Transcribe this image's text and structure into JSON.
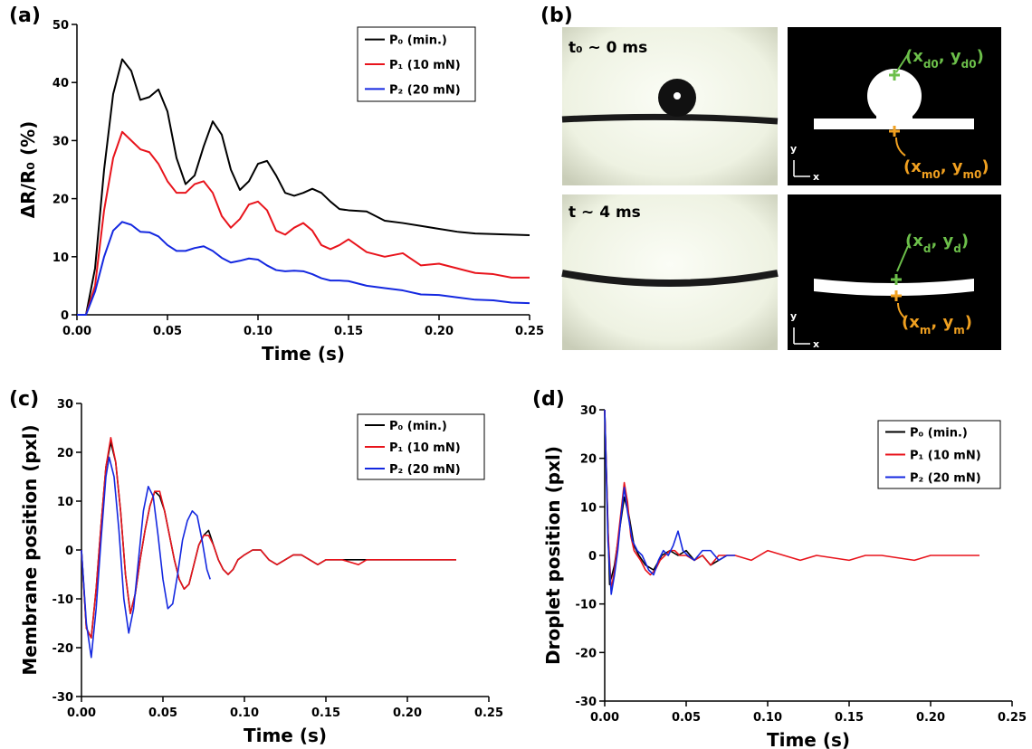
{
  "chart_data": [
    {
      "type": "line",
      "panel_label": "(a)",
      "xlabel": "Time (s)",
      "ylabel": "ΔR/R₀ (%)",
      "x": [
        0,
        0.005,
        0.01,
        0.015,
        0.02,
        0.025,
        0.03,
        0.035,
        0.04,
        0.045,
        0.05,
        0.055,
        0.06,
        0.065,
        0.07,
        0.075,
        0.08,
        0.085,
        0.09,
        0.095,
        0.1,
        0.105,
        0.11,
        0.115,
        0.12,
        0.125,
        0.13,
        0.135,
        0.14,
        0.145,
        0.15,
        0.16,
        0.17,
        0.18,
        0.19,
        0.2,
        0.21,
        0.22,
        0.23,
        0.24,
        0.25
      ],
      "series": [
        {
          "name": "P₀ (min.)",
          "color": "#000000",
          "values": [
            0,
            0,
            8,
            25,
            38,
            44,
            42,
            37,
            37.5,
            38.8,
            35,
            27,
            22.5,
            24,
            29,
            33.3,
            31,
            25,
            21.5,
            23,
            26,
            26.5,
            24,
            21,
            20.5,
            21,
            21.7,
            21,
            19.5,
            18.2,
            18,
            17.8,
            16.2,
            15.8,
            15.3,
            14.8,
            14.3,
            14,
            13.9,
            13.8,
            13.7
          ]
        },
        {
          "name": "P₁ (10 mN)",
          "color": "#e8141c",
          "values": [
            0,
            0,
            5,
            18,
            27,
            31.5,
            30,
            28.5,
            28,
            26,
            23,
            21,
            21,
            22.5,
            23,
            21,
            17,
            15,
            16.5,
            19,
            19.5,
            18,
            14.5,
            13.8,
            15,
            15.8,
            14.5,
            12,
            11.3,
            12,
            13,
            10.8,
            10,
            10.6,
            8.5,
            8.8,
            8,
            7.2,
            7,
            6.4,
            6.4
          ]
        },
        {
          "name": "P₂ (20 mN)",
          "color": "#1428e0",
          "values": [
            0,
            0,
            4,
            10,
            14.5,
            16,
            15.5,
            14.3,
            14.2,
            13.5,
            12,
            11,
            11,
            11.5,
            11.8,
            11,
            9.8,
            9,
            9.3,
            9.7,
            9.5,
            8.5,
            7.7,
            7.5,
            7.6,
            7.5,
            7,
            6.3,
            5.9,
            5.9,
            5.8,
            5,
            4.6,
            4.2,
            3.5,
            3.4,
            3,
            2.6,
            2.5,
            2.1,
            2
          ]
        }
      ],
      "xlim": [
        0,
        0.25
      ],
      "xticks": [
        {
          "value": 0,
          "label": "0.00"
        },
        {
          "value": 0.05,
          "label": "0.05"
        },
        {
          "value": 0.1,
          "label": "0.10"
        },
        {
          "value": 0.15,
          "label": "0.15"
        },
        {
          "value": 0.2,
          "label": "0.20"
        },
        {
          "value": 0.25,
          "label": "0.25"
        }
      ],
      "ylim": [
        0,
        50
      ],
      "yticks": [
        0,
        10,
        20,
        30,
        40,
        50
      ],
      "legend": "upper right"
    },
    {
      "type": "line",
      "panel_label": "(c)",
      "xlabel": "Time (s)",
      "ylabel": "Membrane position (pxl)",
      "series": [
        {
          "name": "P₀ (min.)",
          "color": "#000000",
          "x": [
            0,
            0.003,
            0.006,
            0.009,
            0.012,
            0.015,
            0.018,
            0.021,
            0.024,
            0.027,
            0.03,
            0.033,
            0.036,
            0.039,
            0.042,
            0.045,
            0.048,
            0.051,
            0.054,
            0.057,
            0.06,
            0.063,
            0.066,
            0.069,
            0.072,
            0.075,
            0.078,
            0.081,
            0.084,
            0.087,
            0.09,
            0.093,
            0.096,
            0.1,
            0.105,
            0.11,
            0.115,
            0.12,
            0.125,
            0.13,
            0.135,
            0.14,
            0.145,
            0.15,
            0.16,
            0.17,
            0.175,
            0.2,
            0.23
          ],
          "values": [
            0,
            -16,
            -18,
            -8,
            5,
            17,
            22,
            18,
            8,
            -5,
            -13,
            -9,
            -2,
            4,
            9,
            12,
            11,
            8,
            3,
            -2,
            -6,
            -8,
            -7,
            -3,
            1,
            3,
            4,
            1,
            -2,
            -4,
            -5,
            -4,
            -2,
            -1,
            0,
            0,
            -2,
            -3,
            -2,
            -1,
            -1,
            -2,
            -3,
            -2,
            -2,
            -2,
            -2,
            -2,
            -2
          ]
        },
        {
          "name": "P₁ (10 mN)",
          "color": "#e8141c",
          "x": [
            0,
            0.003,
            0.006,
            0.009,
            0.012,
            0.015,
            0.018,
            0.021,
            0.024,
            0.027,
            0.03,
            0.033,
            0.036,
            0.039,
            0.042,
            0.045,
            0.048,
            0.051,
            0.054,
            0.057,
            0.06,
            0.063,
            0.066,
            0.069,
            0.072,
            0.075,
            0.078,
            0.081,
            0.084,
            0.087,
            0.09,
            0.093,
            0.096,
            0.1,
            0.105,
            0.11,
            0.115,
            0.12,
            0.125,
            0.13,
            0.135,
            0.14,
            0.145,
            0.15,
            0.16,
            0.17,
            0.175,
            0.2,
            0.23
          ],
          "values": [
            0,
            -16,
            -18,
            -8,
            5,
            17,
            23,
            18,
            8,
            -5,
            -13,
            -9,
            -2,
            4,
            9,
            12,
            12,
            8,
            3,
            -2,
            -6,
            -8,
            -7,
            -3,
            1,
            3,
            3,
            1,
            -2,
            -4,
            -5,
            -4,
            -2,
            -1,
            0,
            0,
            -2,
            -3,
            -2,
            -1,
            -1,
            -2,
            -3,
            -2,
            -2,
            -3,
            -2,
            -2,
            -2
          ]
        },
        {
          "name": "P₂ (20 mN)",
          "color": "#1428e0",
          "x": [
            0,
            0.003,
            0.006,
            0.009,
            0.012,
            0.015,
            0.017,
            0.02,
            0.023,
            0.026,
            0.029,
            0.032,
            0.035,
            0.038,
            0.041,
            0.044,
            0.047,
            0.05,
            0.053,
            0.056,
            0.059,
            0.062,
            0.065,
            0.068,
            0.071,
            0.074,
            0.077,
            0.079
          ],
          "values": [
            0,
            -15,
            -22,
            -12,
            2,
            15,
            19,
            15,
            4,
            -10,
            -17,
            -12,
            -2,
            8,
            13,
            11,
            3,
            -6,
            -12,
            -11,
            -5,
            2,
            6,
            8,
            7,
            2,
            -4,
            -6
          ]
        }
      ],
      "xlim": [
        0,
        0.25
      ],
      "xticks": [
        {
          "value": 0,
          "label": "0.00"
        },
        {
          "value": 0.05,
          "label": "0.05"
        },
        {
          "value": 0.1,
          "label": "0.10"
        },
        {
          "value": 0.15,
          "label": "0.15"
        },
        {
          "value": 0.2,
          "label": "0.20"
        },
        {
          "value": 0.25,
          "label": "0.25"
        }
      ],
      "ylim": [
        -30,
        30
      ],
      "yticks": [
        -30,
        -20,
        -10,
        0,
        10,
        20,
        30
      ],
      "legend": "upper right"
    },
    {
      "type": "line",
      "panel_label": "(d)",
      "xlabel": "Time (s)",
      "ylabel": "Droplet position (pxl)",
      "series": [
        {
          "name": "P₀ (min.)",
          "color": "#000000",
          "x": [
            0,
            0.003,
            0.006,
            0.009,
            0.012,
            0.015,
            0.018,
            0.021,
            0.025,
            0.03,
            0.035,
            0.04,
            0.045,
            0.05,
            0.055,
            0.06,
            0.065,
            0.07,
            0.075
          ],
          "values": [
            30,
            -6,
            -2,
            5,
            12,
            8,
            2,
            0,
            -2,
            -3,
            0,
            1,
            0,
            1,
            -1,
            0,
            -2,
            -1,
            0
          ]
        },
        {
          "name": "P₁ (10 mN)",
          "color": "#e8141c",
          "x": [
            0,
            0.002,
            0.004,
            0.006,
            0.008,
            0.01,
            0.012,
            0.014,
            0.016,
            0.018,
            0.02,
            0.022,
            0.025,
            0.028,
            0.031,
            0.034,
            0.037,
            0.04,
            0.043,
            0.046,
            0.05,
            0.055,
            0.06,
            0.065,
            0.07,
            0.08,
            0.09,
            0.1,
            0.11,
            0.12,
            0.13,
            0.15,
            0.16,
            0.17,
            0.19,
            0.2,
            0.23
          ],
          "values": [
            30,
            5,
            -7,
            -3,
            3,
            9,
            15,
            11,
            4,
            1,
            0,
            -1,
            -3,
            -4,
            -3,
            -1,
            0,
            1,
            1,
            0,
            0,
            -1,
            0,
            -2,
            0,
            0,
            -1,
            1,
            0,
            -1,
            0,
            -1,
            0,
            0,
            -1,
            0,
            0
          ]
        },
        {
          "name": "P₂ (20 mN)",
          "color": "#1428e0",
          "x": [
            0,
            0.002,
            0.004,
            0.006,
            0.008,
            0.01,
            0.012,
            0.014,
            0.017,
            0.02,
            0.023,
            0.027,
            0.03,
            0.033,
            0.036,
            0.039,
            0.042,
            0.045,
            0.048,
            0.051,
            0.055,
            0.06,
            0.065,
            0.07,
            0.075,
            0.08
          ],
          "values": [
            30,
            3,
            -8,
            -4,
            1,
            8,
            14,
            9,
            3,
            1,
            0,
            -3,
            -4,
            -1,
            1,
            0,
            2,
            5,
            1,
            0,
            -1,
            1,
            1,
            -1,
            0,
            0
          ]
        }
      ],
      "xlim": [
        0,
        0.25
      ],
      "xticks": [
        {
          "value": 0,
          "label": "0.00"
        },
        {
          "value": 0.05,
          "label": "0.05"
        },
        {
          "value": 0.1,
          "label": "0.10"
        },
        {
          "value": 0.15,
          "label": "0.15"
        },
        {
          "value": 0.2,
          "label": "0.20"
        },
        {
          "value": 0.25,
          "label": "0.25"
        }
      ],
      "ylim": [
        -30,
        30
      ],
      "yticks": [
        -30,
        -20,
        -10,
        0,
        10,
        20,
        30
      ],
      "legend": "upper right"
    }
  ],
  "panel_b": {
    "panel_label": "(b)",
    "time_top": "t₀ ~ 0 ms",
    "time_bottom": "t ~ 4 ms",
    "axis_x": "x",
    "axis_y": "y",
    "annotations": [
      {
        "parts": [
          "(x",
          "d0",
          ", y",
          "d0",
          ")"
        ]
      },
      {
        "parts": [
          "(x",
          "m0",
          ", y",
          "m0",
          ")"
        ]
      },
      {
        "parts": [
          "(x",
          "d",
          ", y",
          "d",
          ")"
        ]
      },
      {
        "parts": [
          "(x",
          "m",
          ", y",
          "m",
          ")"
        ]
      }
    ]
  }
}
